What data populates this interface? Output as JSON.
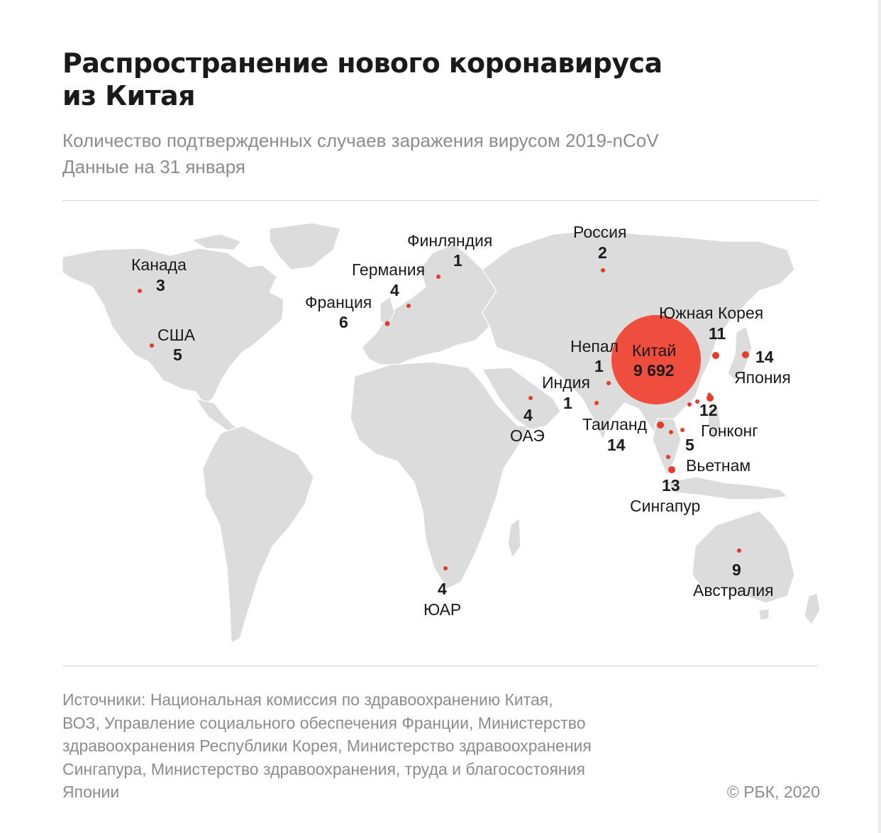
{
  "title": {
    "line1": "Распространение нового коронавируса",
    "line2": "из Китая"
  },
  "subtitle": {
    "line1": "Количество подтвержденных случаев заражения вирусом 2019-nCoV",
    "line2": "Данные на 31 января"
  },
  "countries": {
    "finland": {
      "name": "Финляндия",
      "count": "1"
    },
    "russia": {
      "name": "Россия",
      "count": "2"
    },
    "canada": {
      "name": "Канада",
      "count": "3"
    },
    "germany": {
      "name": "Германия",
      "count": "4"
    },
    "france": {
      "name": "Франция",
      "count": "6"
    },
    "usa": {
      "name": "США",
      "count": "5"
    },
    "south_korea": {
      "name": "Южная Корея",
      "count": "11"
    },
    "nepal": {
      "name": "Непал",
      "count": "1"
    },
    "china": {
      "name": "Китай",
      "count": "9 692"
    },
    "japan": {
      "name": "Япония",
      "count": "14"
    },
    "india": {
      "name": "Индия",
      "count": "1"
    },
    "uae": {
      "name": "ОАЭ",
      "count": "4"
    },
    "taiwan": {
      "count": "12"
    },
    "thailand": {
      "name": "Таиланд",
      "count": "14"
    },
    "hong_kong": {
      "name": "Гонконг",
      "count": "5"
    },
    "vietnam": {
      "name": "Вьетнам"
    },
    "singapore": {
      "name": "Сингапур",
      "count": "13"
    },
    "australia": {
      "name": "Австралия",
      "count": "9"
    },
    "south_africa": {
      "name": "ЮАР",
      "count": "4"
    }
  },
  "sources": {
    "line1": "Источники: Национальная комиссия по здравоохранению Китая,",
    "line2": "ВОЗ, Управление социального обеспечения Франции, Министерство",
    "line3": "здравоохранения Республики Корея, Министерство здравоохранения",
    "line4": "Сингапура, Министерство здравоохранения, труда и благосостояния",
    "line5": "Японии"
  },
  "copyright": "© РБК, 2020",
  "colors": {
    "land": "#dcdcdc",
    "borders": "#ffffff",
    "marker": "#e8392b",
    "china_bubble": "#ef4534"
  }
}
